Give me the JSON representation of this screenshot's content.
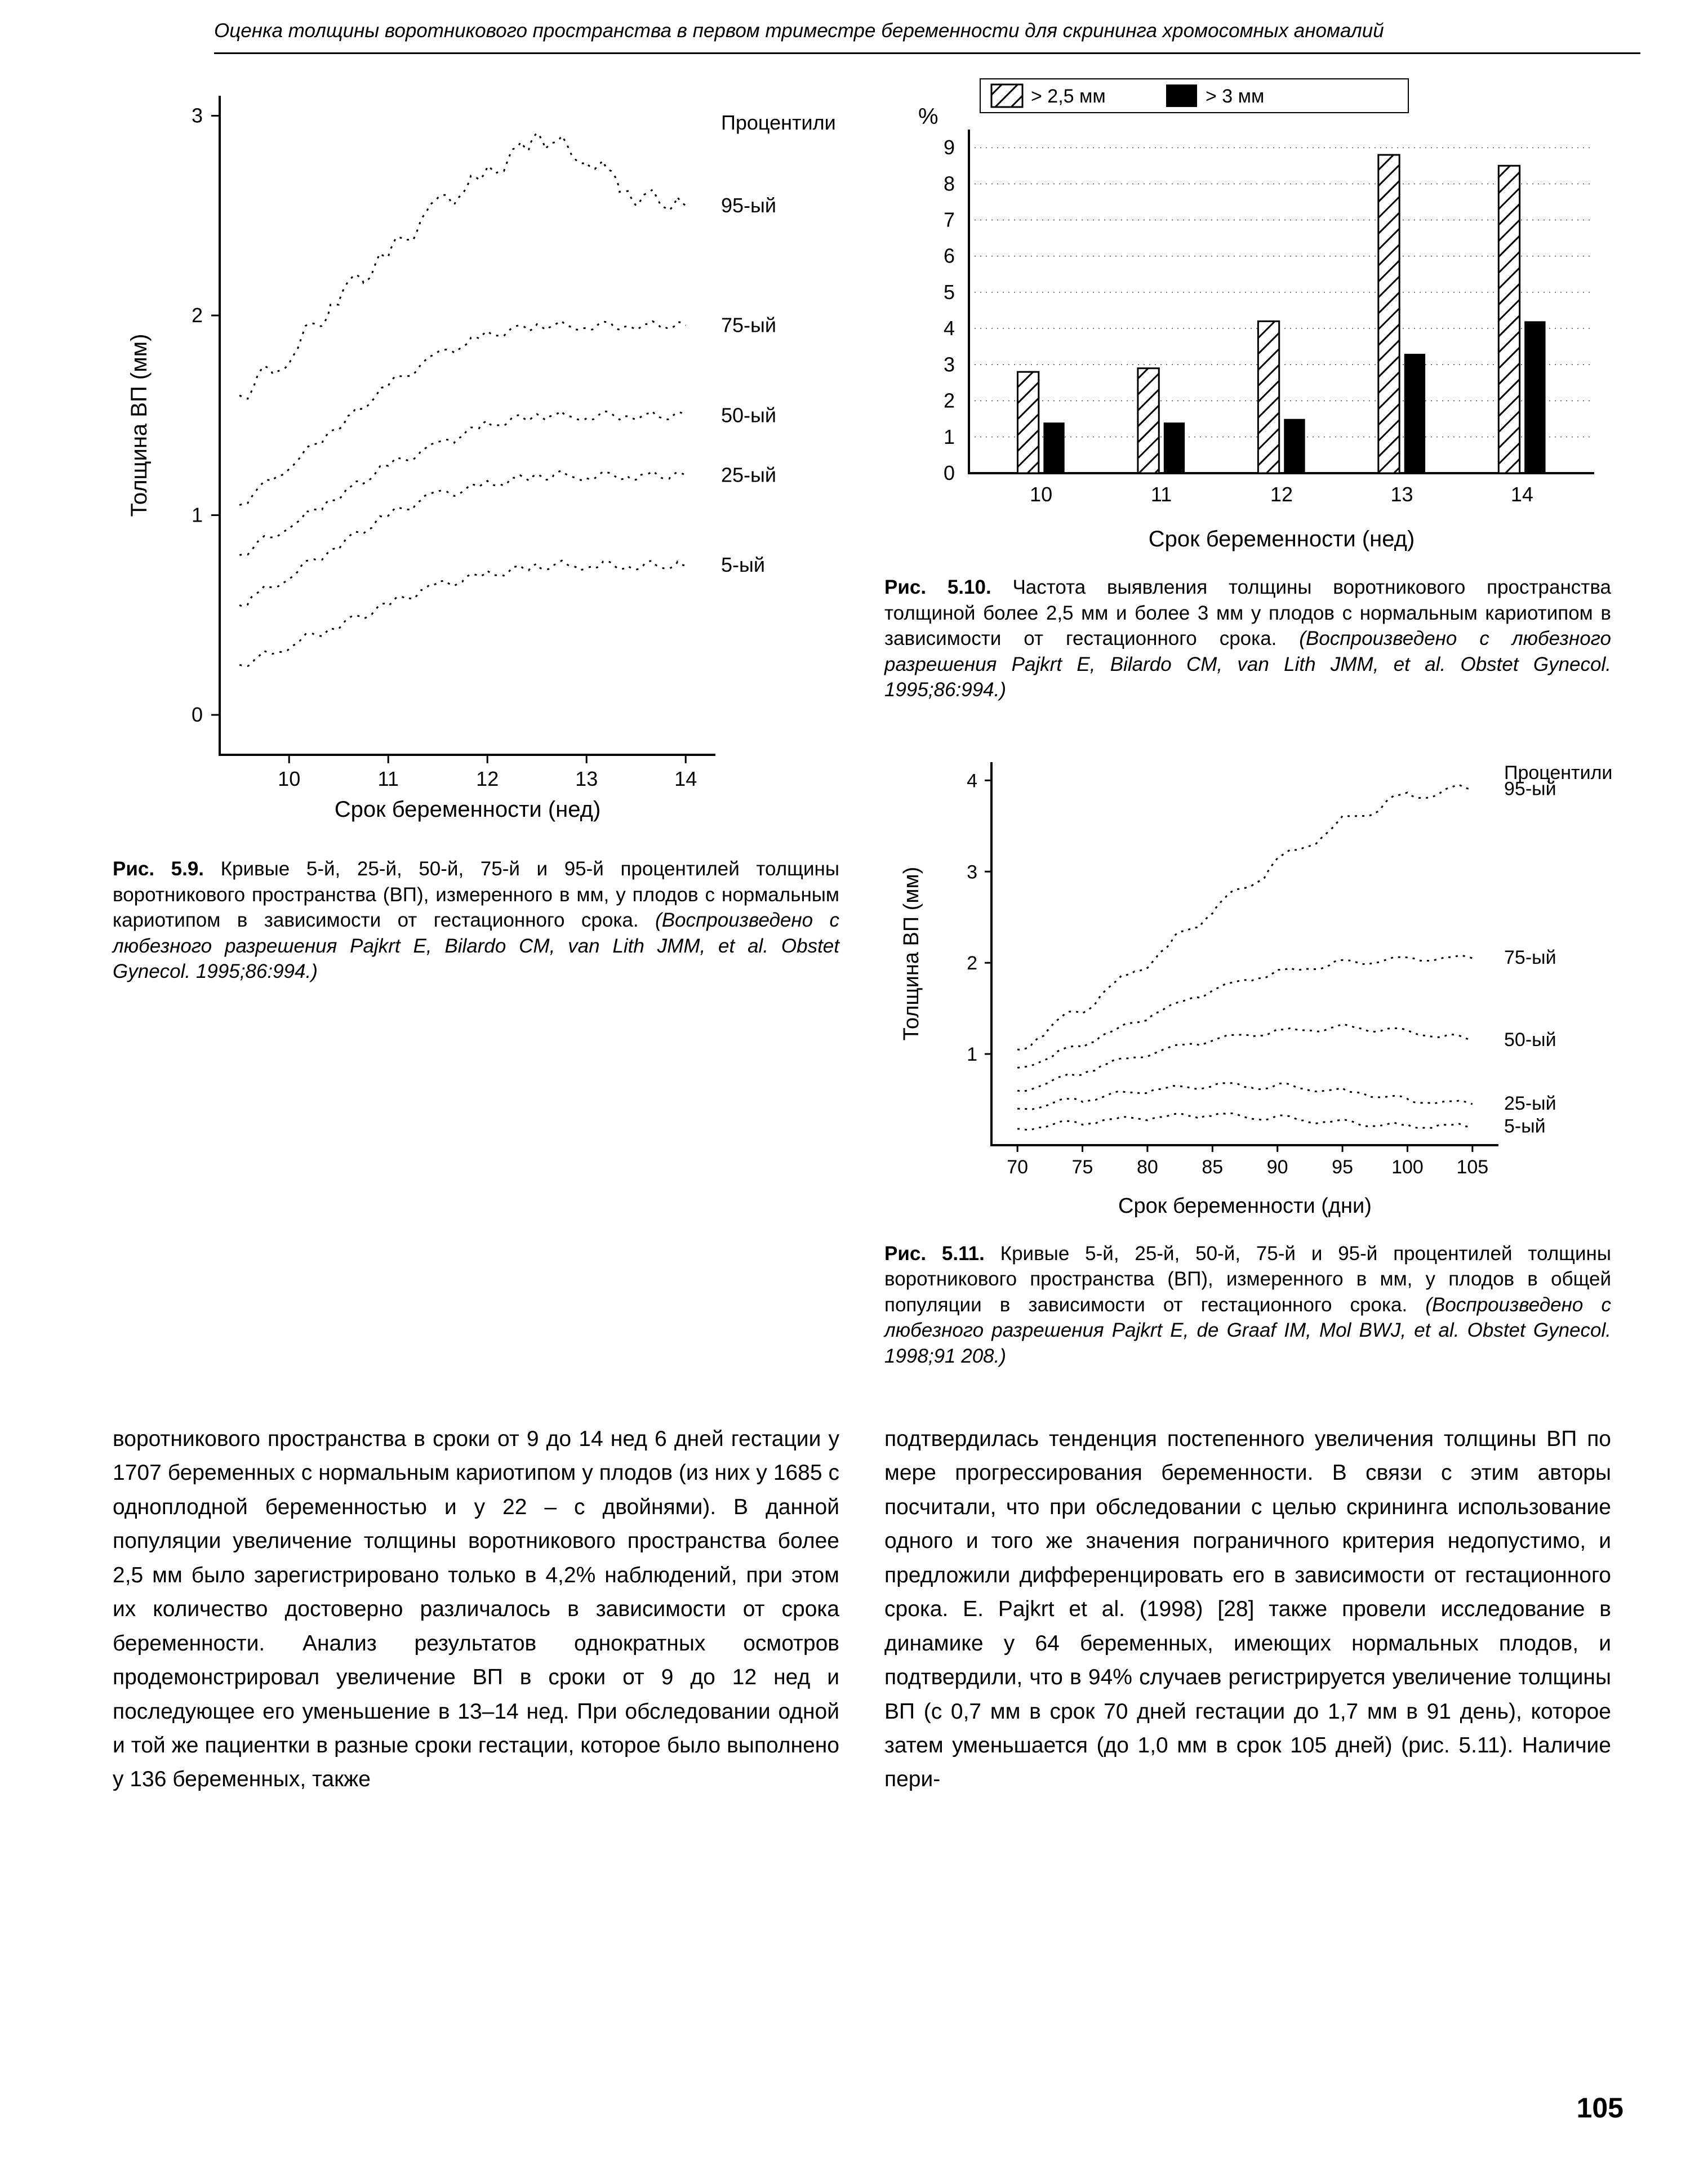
{
  "running_head": "Оценка толщины воротникового пространства в первом триместре беременности для скрининга хромосомных аномалий",
  "page_number": "105",
  "fig_5_9": {
    "type": "line",
    "title_label_label": "Процентили",
    "x_label": "Срок беременности (нед)",
    "y_label": "Толщина ВП (мм)",
    "x_ticks": [
      10,
      11,
      12,
      13,
      14
    ],
    "xlim": [
      9.3,
      14.3
    ],
    "y_ticks": [
      0,
      1,
      2,
      3
    ],
    "ylim": [
      -0.2,
      3.1
    ],
    "line_color": "#000000",
    "bg": "#ffffff",
    "tick_fontsize": 36,
    "axis_fontsize": 40,
    "label_fontsize": 36,
    "series": {
      "p95": {
        "label": "95-ый",
        "x": [
          9.5,
          10,
          10.5,
          11,
          11.5,
          12,
          12.5,
          13,
          13.5,
          14
        ],
        "y": [
          1.6,
          1.8,
          2.1,
          2.3,
          2.55,
          2.7,
          2.9,
          2.8,
          2.6,
          2.55
        ]
      },
      "p75": {
        "label": "75-ый",
        "x": [
          9.5,
          10,
          10.5,
          11,
          11.5,
          12,
          12.5,
          13,
          13.5,
          14
        ],
        "y": [
          1.05,
          1.25,
          1.45,
          1.65,
          1.8,
          1.9,
          1.95,
          1.95,
          1.95,
          1.95
        ]
      },
      "p50": {
        "label": "50-ый",
        "x": [
          9.5,
          10,
          10.5,
          11,
          11.5,
          12,
          12.5,
          13,
          13.5,
          14
        ],
        "y": [
          0.8,
          0.95,
          1.1,
          1.25,
          1.35,
          1.45,
          1.5,
          1.5,
          1.5,
          1.5
        ]
      },
      "p25": {
        "label": "25-ый",
        "x": [
          9.5,
          10,
          10.5,
          11,
          11.5,
          12,
          12.5,
          13,
          13.5,
          14
        ],
        "y": [
          0.55,
          0.7,
          0.85,
          1.0,
          1.1,
          1.15,
          1.2,
          1.2,
          1.2,
          1.2
        ]
      },
      "p5": {
        "label": "5-ый",
        "x": [
          9.5,
          10,
          10.5,
          11,
          11.5,
          12,
          12.5,
          13,
          13.5,
          14
        ],
        "y": [
          0.25,
          0.35,
          0.45,
          0.55,
          0.65,
          0.7,
          0.75,
          0.75,
          0.75,
          0.75
        ]
      }
    },
    "caption_bold": "Рис. 5.9.",
    "caption_rest": " Кривые 5-й, 25-й, 50-й, 75-й и 95-й процентилей толщины воротникового пространства (ВП), измеренного в мм, у плодов с нормальным кариотипом в зависимости от гестационного срока. ",
    "caption_ital": "(Воспроизведено с любезного разрешения Pajkrt E, Bilardo CM, van Lith JMM, et al. Obstet Gynecol. 1995;86:994.)"
  },
  "fig_5_10": {
    "type": "bar",
    "x_label": "Срок беременности (нед)",
    "y_label": "%",
    "legend": [
      {
        "label": "> 2,5 мм",
        "pattern": "diag",
        "border": "#000000"
      },
      {
        "label": "> 3 мм",
        "pattern": "solid",
        "fill": "#000000"
      }
    ],
    "x_ticks": [
      10,
      11,
      12,
      13,
      14
    ],
    "xlim": [
      9.4,
      14.6
    ],
    "y_ticks": [
      0,
      1,
      2,
      3,
      4,
      5,
      6,
      7,
      8,
      9
    ],
    "ylim": [
      0,
      9.5
    ],
    "bg": "#ffffff",
    "grid_color": "#000000",
    "bar_width": 0.35,
    "tick_fontsize": 36,
    "axis_fontsize": 40,
    "series": {
      "a": {
        "pattern": "diag",
        "values": {
          "10": 2.8,
          "11": 2.9,
          "12": 4.2,
          "13": 8.8,
          "14": 8.5
        }
      },
      "b": {
        "pattern": "solid",
        "values": {
          "10": 1.4,
          "11": 1.4,
          "12": 1.5,
          "13": 3.3,
          "14": 4.2
        }
      }
    },
    "caption_bold": "Рис. 5.10.",
    "caption_rest": " Частота выявления толщины воротникового пространства толщиной более 2,5 мм и более 3 мм у плодов с нормальным кариотипом в зависимости от гестационного срока. ",
    "caption_ital": "(Воспроизведено с любезного разрешения Pajkrt E, Bilardo CM, van Lith JMM, et al. Obstet Gynecol. 1995;86:994.)"
  },
  "fig_5_11": {
    "type": "line",
    "title_label_label": "Процентили",
    "x_label": "Срок беременности (дни)",
    "y_label": "Толщина ВП (мм)",
    "x_ticks": [
      70,
      75,
      80,
      85,
      90,
      95,
      100,
      105
    ],
    "xlim": [
      68,
      107
    ],
    "y_ticks": [
      1,
      2,
      3,
      4
    ],
    "ylim": [
      0.0,
      4.2
    ],
    "line_color": "#000000",
    "bg": "#ffffff",
    "tick_fontsize": 34,
    "axis_fontsize": 38,
    "label_fontsize": 34,
    "series": {
      "p95": {
        "label": "95-ый",
        "x": [
          70,
          75,
          80,
          85,
          90,
          95,
          100,
          105
        ],
        "y": [
          1.05,
          1.5,
          2.0,
          2.55,
          3.1,
          3.55,
          3.85,
          3.9
        ]
      },
      "p75": {
        "label": "75-ый",
        "x": [
          70,
          75,
          80,
          85,
          90,
          95,
          100,
          105
        ],
        "y": [
          0.85,
          1.1,
          1.4,
          1.7,
          1.9,
          2.0,
          2.05,
          2.05
        ]
      },
      "p50": {
        "label": "50-ый",
        "x": [
          70,
          75,
          80,
          85,
          90,
          95,
          100,
          105
        ],
        "y": [
          0.6,
          0.8,
          1.0,
          1.15,
          1.25,
          1.3,
          1.25,
          1.15
        ]
      },
      "p25": {
        "label": "25-ый",
        "x": [
          70,
          75,
          80,
          85,
          90,
          95,
          100,
          105
        ],
        "y": [
          0.4,
          0.5,
          0.6,
          0.65,
          0.65,
          0.6,
          0.5,
          0.45
        ]
      },
      "p5": {
        "label": "5-ый",
        "x": [
          70,
          75,
          80,
          85,
          90,
          95,
          100,
          105
        ],
        "y": [
          0.18,
          0.25,
          0.3,
          0.32,
          0.3,
          0.25,
          0.22,
          0.2
        ]
      }
    },
    "caption_bold": "Рис. 5.11.",
    "caption_rest": " Кривые 5-й, 25-й, 50-й, 75-й и 95-й процентилей толщины воротникового пространства (ВП), измеренного в мм, у плодов в общей популяции в зависимости от гестационного срока. ",
    "caption_ital": "(Воспроизведено с любезного разрешения Pajkrt E, de Graaf IM, Mol BWJ, et al. Obstet Gynecol. 1998;91 208.)"
  },
  "left_body": "воротникового пространства в сроки от 9 до 14 нед 6 дней гестации у 1707 беременных с нормальным кариотипом у плодов (из них у 1685 с одноплодной беременностью и у 22 – с двойнями). В данной популяции увеличение толщины воротникового пространства более 2,5 мм было зарегистрировано только в 4,2% наблюдений, при этом их количество достоверно различалось в зависимости от срока беременности. Анализ результатов однократных осмотров продемонстрировал увеличение ВП в сроки от 9 до 12 нед и последующее его уменьшение в 13–14 нед. При обследовании одной и той же пациентки в разные сроки гестации, которое было выполнено у 136 беременных, также",
  "right_body": "подтвердилась тенденция постепенного увеличения толщины ВП по мере прогрессирования беременности. В связи с этим авторы посчитали, что при обследовании с целью скрининга использование одного и того же значения пограничного критерия недопустимо, и предложили дифференцировать его в зависимости от гестационного срока. E. Pajkrt et al. (1998) [28] также провели исследование в динамике у 64 беременных, имеющих нормальных плодов, и подтвердили, что в 94% случаев регистрируется увеличение толщины ВП (с 0,7 мм в срок 70 дней гестации до 1,7 мм в 91 день), которое затем уменьшается (до 1,0 мм в срок 105 дней) (рис. 5.11). Наличие пери-"
}
